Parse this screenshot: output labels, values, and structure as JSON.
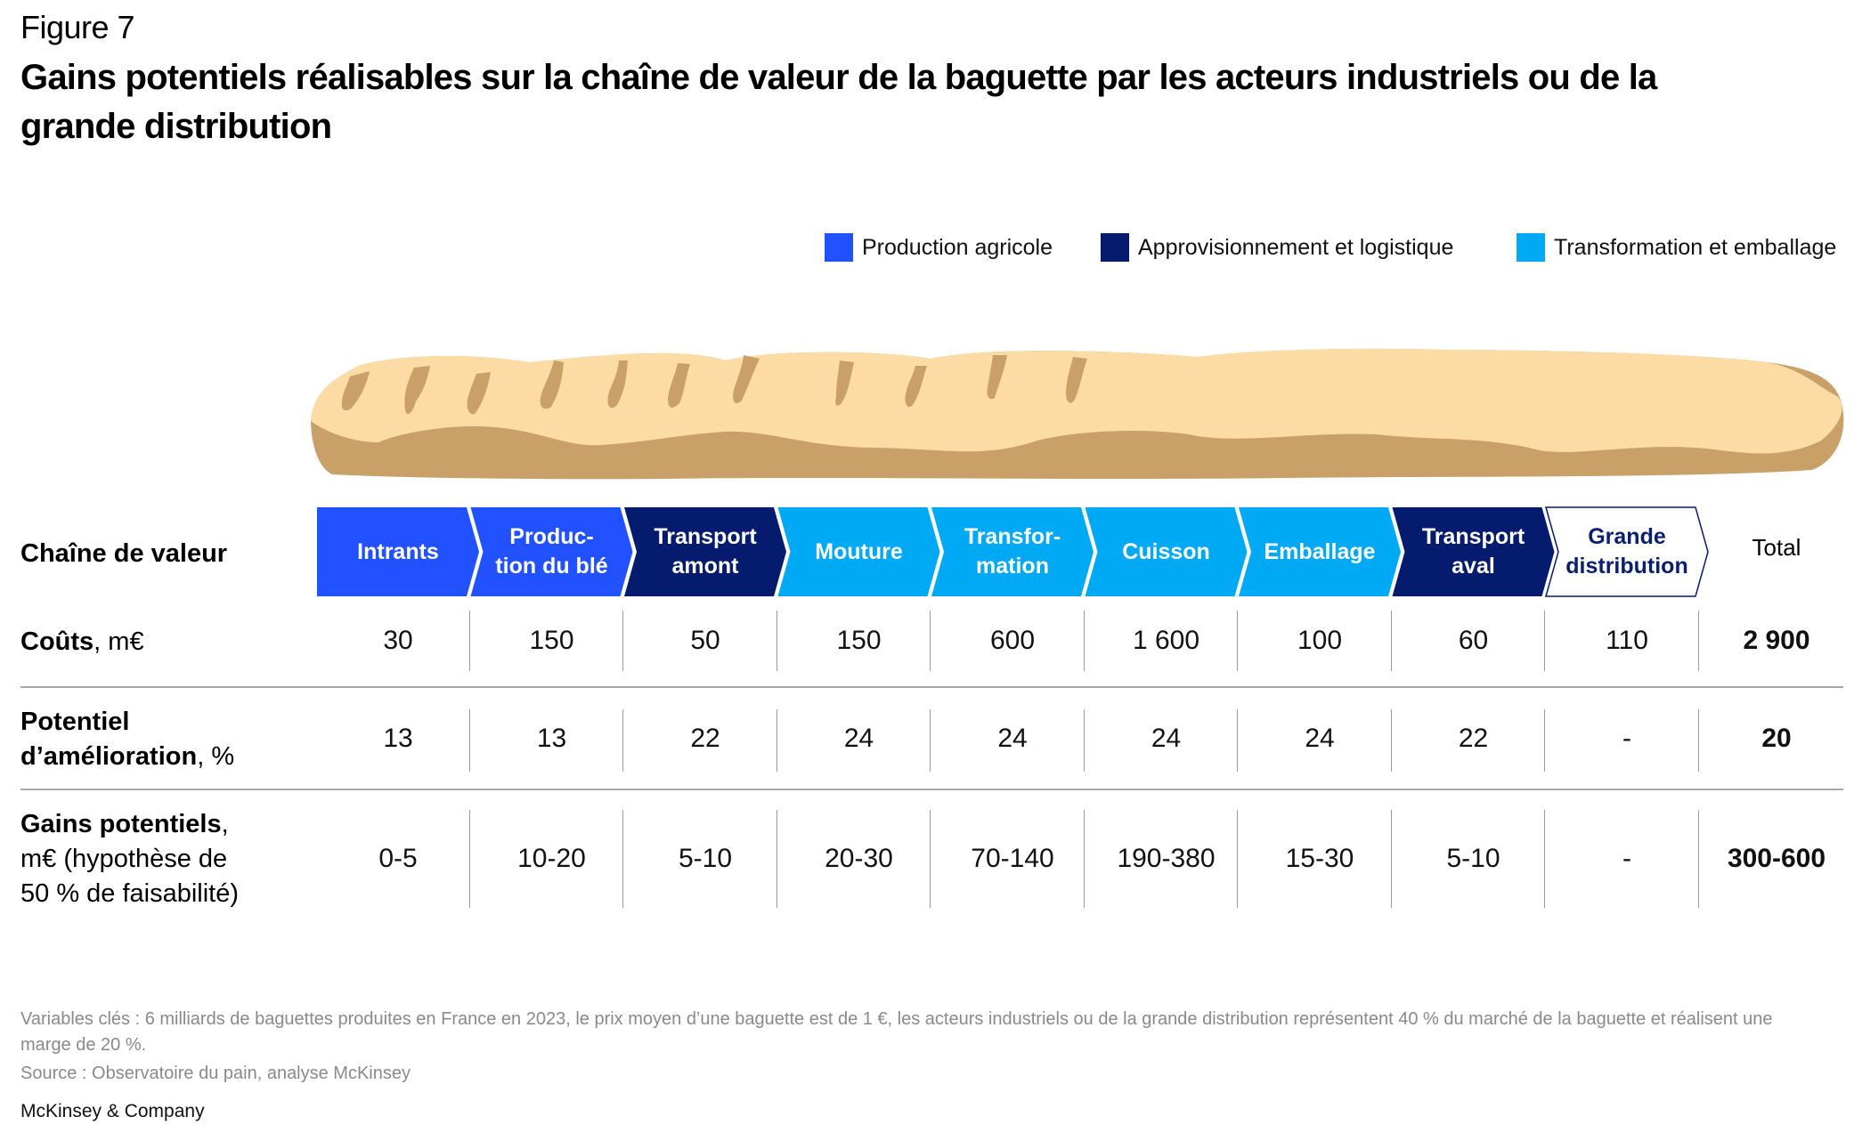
{
  "figure_label": "Figure 7",
  "title": "Gains potentiels réalisables sur la chaîne de valeur de la baguette par les acteurs industriels ou de la grande distribution",
  "colors": {
    "production_agricole": "#2251ff",
    "approvisionnement_logistique": "#051c6e",
    "transformation_emballage": "#00a9f4",
    "grande_distribution_outline": "#051c6e",
    "baguette_crust": "#c9a067",
    "baguette_crumb": "#fddba5"
  },
  "legend": [
    {
      "label": "Production agricole",
      "color_key": "production_agricole"
    },
    {
      "label": "Approvisionnement et logistique",
      "color_key": "approvisionnement_logistique"
    },
    {
      "label": "Transformation et emballage",
      "color_key": "transformation_emballage"
    }
  ],
  "row_labels": {
    "chain": "Chaîne de valeur",
    "costs_bold": "Coûts",
    "costs_unit": ", m€",
    "potential_bold_1": "Potentiel",
    "potential_bold_2": "d’amélioration",
    "potential_unit": ", %",
    "gains_bold": "Gains potentiels",
    "gains_unit_1": ",",
    "gains_unit_2": "m€ (hypothèse de",
    "gains_unit_3": "50 % de faisabilité)"
  },
  "total_label": "Total",
  "chain": [
    {
      "line1": "Intrants",
      "line2": "",
      "category": "production_agricole",
      "cost": "30",
      "potential": "13",
      "gains": "0-5"
    },
    {
      "line1": "Produc-",
      "line2": "tion du blé",
      "category": "production_agricole",
      "cost": "150",
      "potential": "13",
      "gains": "10-20"
    },
    {
      "line1": "Transport",
      "line2": "amont",
      "category": "approvisionnement_logistique",
      "cost": "50",
      "potential": "22",
      "gains": "5-10"
    },
    {
      "line1": "Mouture",
      "line2": "",
      "category": "transformation_emballage",
      "cost": "150",
      "potential": "24",
      "gains": "20-30"
    },
    {
      "line1": "Transfor-",
      "line2": "mation",
      "category": "transformation_emballage",
      "cost": "600",
      "potential": "24",
      "gains": "70-140"
    },
    {
      "line1": "Cuisson",
      "line2": "",
      "category": "transformation_emballage",
      "cost": "1 600",
      "potential": "24",
      "gains": "190-380"
    },
    {
      "line1": "Emballage",
      "line2": "",
      "category": "transformation_emballage",
      "cost": "100",
      "potential": "24",
      "gains": "15-30"
    },
    {
      "line1": "Transport",
      "line2": "aval",
      "category": "approvisionnement_logistique",
      "cost": "60",
      "potential": "22",
      "gains": "5-10"
    },
    {
      "line1": "Grande",
      "line2": "distribution",
      "category": "grande_distribution",
      "cost": "110",
      "potential": "-",
      "gains": "-"
    }
  ],
  "totals": {
    "cost": "2 900",
    "potential": "20",
    "gains": "300-600"
  },
  "notes": {
    "variables": "Variables clés : 6 milliards de baguettes produites en France en 2023, le prix moyen d’une baguette est de 1 €, les acteurs industriels ou de la grande distribution représentent 40 % du marché de la baguette et réalisent une marge de 20 %.",
    "source": "Source : Observatoire du pain, analyse McKinsey"
  },
  "brand": "McKinsey & Company"
}
